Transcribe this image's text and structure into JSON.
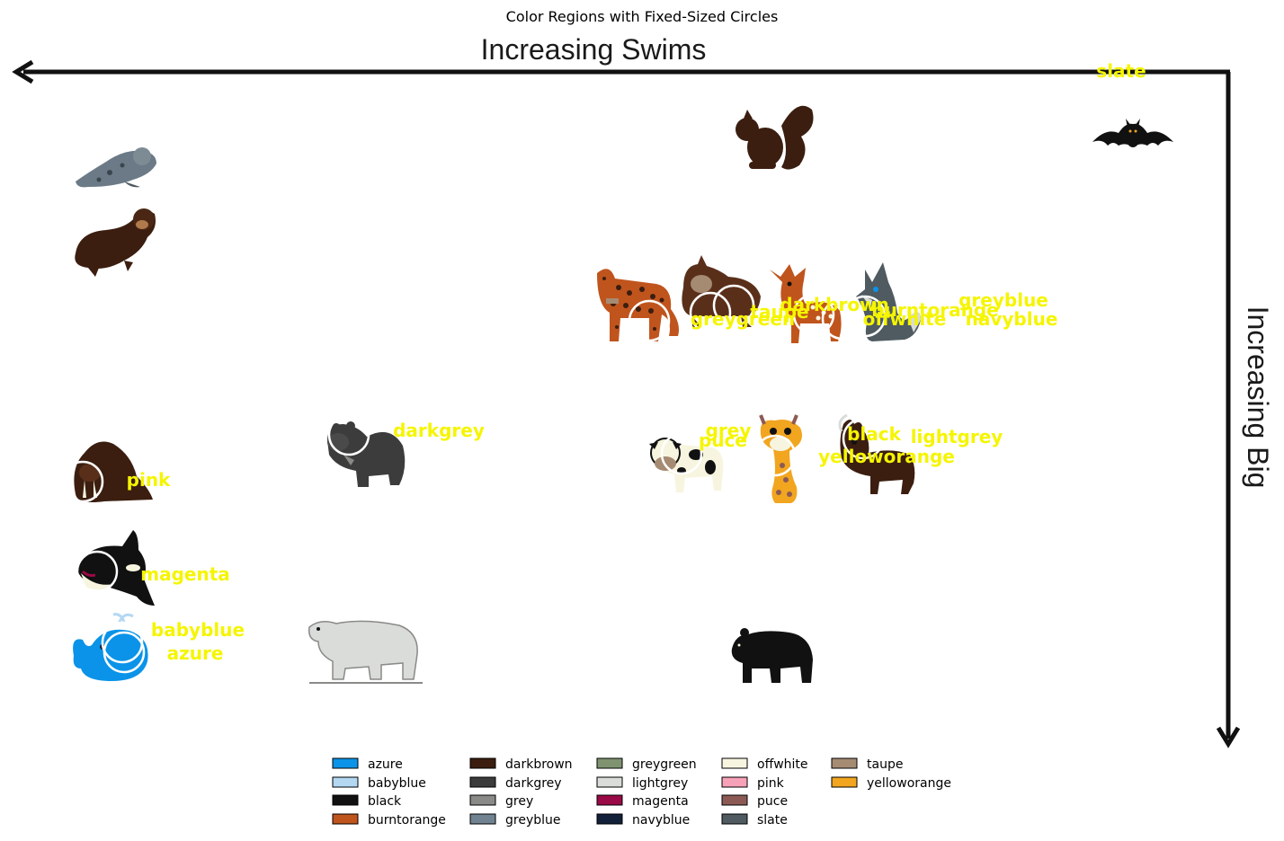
{
  "title": "Color Regions with Fixed-Sized Circles",
  "x_axis_label": "Increasing Swims",
  "y_axis_label": "Increasing Big",
  "colors": {
    "label": "#f5f500",
    "circle": "#ffffff",
    "arrow": "#111111",
    "azure": "#0a93e8",
    "babyblue": "#b4d8f2",
    "black": "#111111",
    "burntorange": "#c0541d",
    "darkbrown": "#3b1e10",
    "darkgrey": "#3c3c3c",
    "grey": "#8a8a88",
    "greyblue": "#718390",
    "greygreen": "#7f9370",
    "lightgrey": "#d9dcd9",
    "magenta": "#9a0a46",
    "navyblue": "#12203a",
    "offwhite": "#f7f5df",
    "pink": "#f7a1b9",
    "puce": "#8c5a55",
    "slate": "#4f5a61",
    "taupe": "#a68b73",
    "yelloworange": "#f2a51f"
  },
  "chart_data": {
    "type": "scatter",
    "title": "Color Regions with Fixed-Sized Circles",
    "xlabel": "Increasing Swims",
    "ylabel": "Increasing Big",
    "x_direction": "right-to-left",
    "y_direction": "top-to-bottom",
    "legend_position": "bottom-center",
    "animals": [
      {
        "name": "bat",
        "icon": "bat-icon",
        "x": 0.06,
        "y": 0.1
      },
      {
        "name": "squirrel",
        "icon": "squirrel-icon",
        "x": 0.37,
        "y": 0.1
      },
      {
        "name": "seal",
        "icon": "seal-icon",
        "x": 0.96,
        "y": 0.14
      },
      {
        "name": "otter",
        "icon": "otter-icon",
        "x": 0.96,
        "y": 0.26
      },
      {
        "name": "leopard",
        "icon": "leopard-icon",
        "x": 0.52,
        "y": 0.36
      },
      {
        "name": "lynx",
        "icon": "lynx-icon",
        "x": 0.44,
        "y": 0.35
      },
      {
        "name": "deer",
        "icon": "deer-icon",
        "x": 0.36,
        "y": 0.36
      },
      {
        "name": "wolf",
        "icon": "wolf-icon",
        "x": 0.27,
        "y": 0.36
      },
      {
        "name": "hippo",
        "icon": "hippo-icon",
        "x": 0.74,
        "y": 0.58
      },
      {
        "name": "cow",
        "icon": "cow-icon",
        "x": 0.47,
        "y": 0.59
      },
      {
        "name": "giraffe",
        "icon": "giraffe-icon",
        "x": 0.38,
        "y": 0.59
      },
      {
        "name": "moose",
        "icon": "moose-icon",
        "x": 0.29,
        "y": 0.59
      },
      {
        "name": "walrus",
        "icon": "walrus-icon",
        "x": 0.96,
        "y": 0.61
      },
      {
        "name": "orca",
        "icon": "orca-icon",
        "x": 0.96,
        "y": 0.74
      },
      {
        "name": "whale",
        "icon": "whale-icon",
        "x": 0.96,
        "y": 0.86
      },
      {
        "name": "polar bear",
        "icon": "polar-bear-icon",
        "x": 0.74,
        "y": 0.86
      },
      {
        "name": "bear",
        "icon": "bear-icon",
        "x": 0.37,
        "y": 0.86
      }
    ],
    "color_regions": [
      {
        "label": "slate",
        "x": 0.09,
        "y": 0.0,
        "circle": false
      },
      {
        "label": "darkbrown",
        "x": 0.34,
        "y": 0.34,
        "circle": true
      },
      {
        "label": "taupe",
        "x": 0.42,
        "y": 0.34,
        "circle": true
      },
      {
        "label": "greygreen",
        "x": 0.5,
        "y": 0.36,
        "circle": true
      },
      {
        "label": "burntorange",
        "x": 0.35,
        "y": 0.37,
        "circle": true
      },
      {
        "label": "offwhite",
        "x": 0.3,
        "y": 0.37,
        "circle": true
      },
      {
        "label": "greyblue",
        "x": 0.19,
        "y": 0.34,
        "circle": false
      },
      {
        "label": "navyblue",
        "x": 0.18,
        "y": 0.37,
        "circle": false
      },
      {
        "label": "darkgrey",
        "x": 0.74,
        "y": 0.56,
        "circle": true
      },
      {
        "label": "grey",
        "x": 0.38,
        "y": 0.56,
        "circle": true
      },
      {
        "label": "puce",
        "x": 0.38,
        "y": 0.58,
        "circle": true
      },
      {
        "label": "black",
        "x": 0.31,
        "y": 0.56,
        "circle": true
      },
      {
        "label": "lightgrey",
        "x": 0.23,
        "y": 0.56,
        "circle": false
      },
      {
        "label": "yelloworange",
        "x": 0.38,
        "y": 0.58,
        "circle": true
      },
      {
        "label": "pink",
        "x": 0.97,
        "y": 0.63,
        "circle": true
      },
      {
        "label": "magenta",
        "x": 0.95,
        "y": 0.76,
        "circle": true
      },
      {
        "label": "babyblue",
        "x": 0.96,
        "y": 0.84,
        "circle": true
      },
      {
        "label": "azure",
        "x": 0.94,
        "y": 0.88,
        "circle": true
      }
    ],
    "legend": [
      {
        "label": "azure",
        "color": "#0a93e8"
      },
      {
        "label": "babyblue",
        "color": "#b4d8f2"
      },
      {
        "label": "black",
        "color": "#111111"
      },
      {
        "label": "burntorange",
        "color": "#c0541d"
      },
      {
        "label": "darkbrown",
        "color": "#3b1e10"
      },
      {
        "label": "darkgrey",
        "color": "#3c3c3c"
      },
      {
        "label": "grey",
        "color": "#8a8a88"
      },
      {
        "label": "greyblue",
        "color": "#718390"
      },
      {
        "label": "greygreen",
        "color": "#7f9370"
      },
      {
        "label": "lightgrey",
        "color": "#d9dcd9"
      },
      {
        "label": "magenta",
        "color": "#9a0a46"
      },
      {
        "label": "navyblue",
        "color": "#12203a"
      },
      {
        "label": "offwhite",
        "color": "#f7f5df"
      },
      {
        "label": "pink",
        "color": "#f7a1b9"
      },
      {
        "label": "puce",
        "color": "#8c5a55"
      },
      {
        "label": "slate",
        "color": "#4f5a61"
      },
      {
        "label": "taupe",
        "color": "#a68b73"
      },
      {
        "label": "yelloworange",
        "color": "#f2a51f"
      }
    ]
  }
}
